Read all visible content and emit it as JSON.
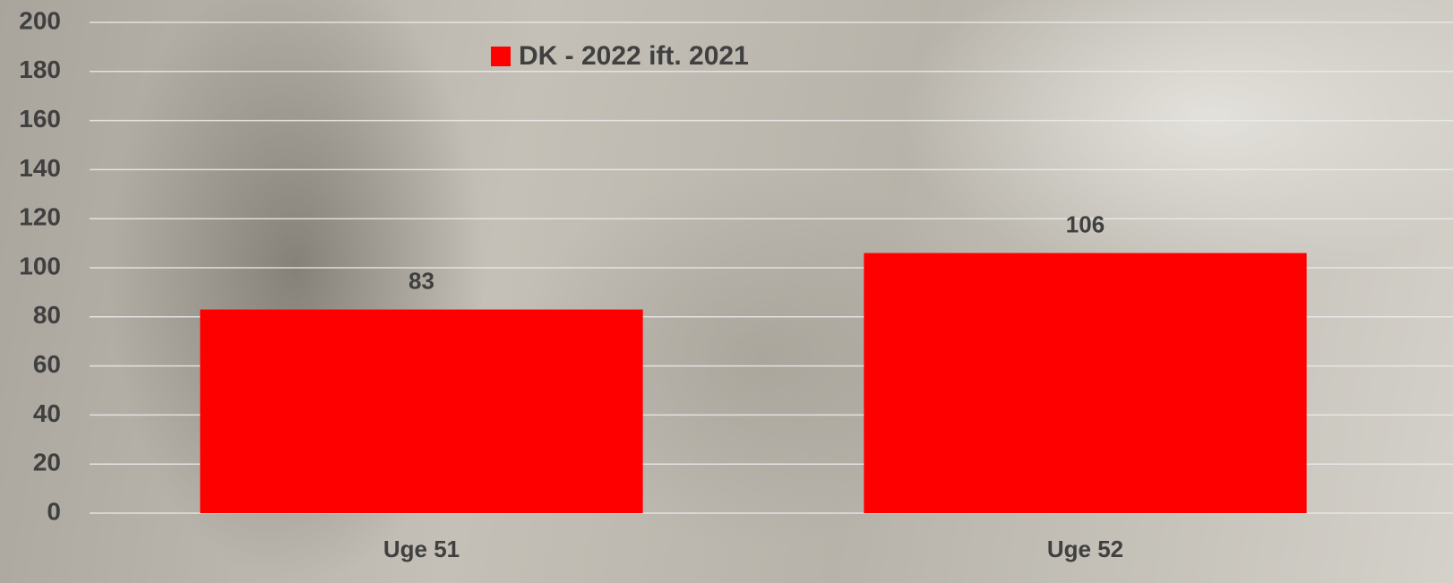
{
  "chart_data": {
    "type": "bar",
    "categories": [
      "Uge 51",
      "Uge 52"
    ],
    "series": [
      {
        "name": "DK - 2022 ift. 2021",
        "color": "#ff0000",
        "values": [
          83,
          106
        ]
      }
    ],
    "ylim": [
      0,
      200
    ],
    "yticks": [
      0,
      20,
      40,
      60,
      80,
      100,
      120,
      140,
      160,
      180,
      200
    ],
    "grid": true,
    "legend": "top",
    "data_labels": true
  }
}
